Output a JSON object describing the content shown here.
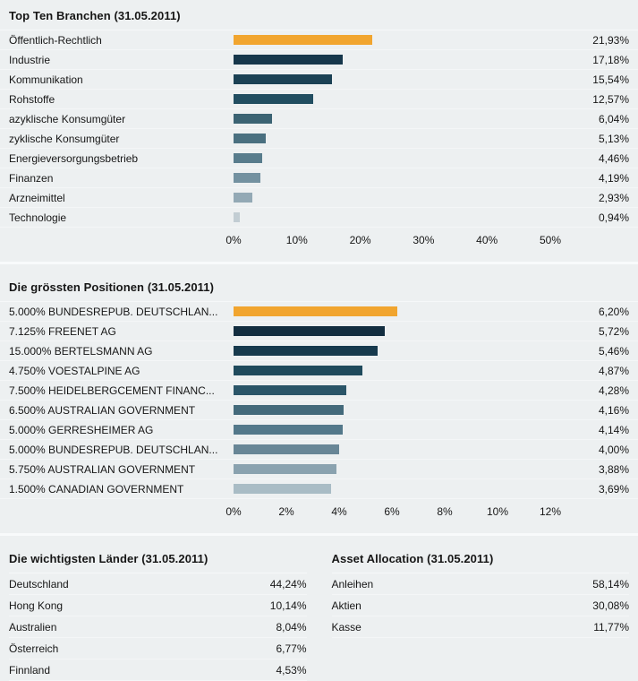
{
  "page": {
    "background": "#edf0f1",
    "text_color": "#161616",
    "separator_color": "#f8fafb",
    "accent_color": "#f1a52f"
  },
  "chart_data": [
    {
      "type": "bar",
      "orientation": "horizontal",
      "title": "Top Ten Branchen (31.05.2011)",
      "categories": [
        "Öffentlich-Rechtlich",
        "Industrie",
        "Kommunikation",
        "Rohstoffe",
        "azyklische Konsumgüter",
        "zyklische Konsumgüter",
        "Energieversorgungsbetrieb",
        "Finanzen",
        "Arzneimittel",
        "Technologie"
      ],
      "values": [
        21.93,
        17.18,
        15.54,
        12.57,
        6.04,
        5.13,
        4.46,
        4.19,
        2.93,
        0.94
      ],
      "value_labels": [
        "21,93%",
        "17,18%",
        "15,54%",
        "12,57%",
        "6,04%",
        "5,13%",
        "4,46%",
        "4,19%",
        "2,93%",
        "0,94%"
      ],
      "bar_colors": [
        "#f1a52f",
        "#16374b",
        "#1b4154",
        "#224e61",
        "#3b6373",
        "#4a7080",
        "#587c8c",
        "#7391a0",
        "#93a9b5",
        "#c2cdd3"
      ],
      "axis": {
        "ticks": [
          "0%",
          "10%",
          "20%",
          "30%",
          "40%",
          "50%"
        ],
        "max": 50
      },
      "xlabel": "",
      "ylabel": "",
      "grid": false,
      "legend": false
    },
    {
      "type": "bar",
      "orientation": "horizontal",
      "title": "Die grössten Positionen (31.05.2011)",
      "categories": [
        "5.000% BUNDESREPUB. DEUTSCHLAN...",
        "7.125% FREENET AG",
        "15.000% BERTELSMANN AG",
        "4.750% VOESTALPINE AG",
        "7.500% HEIDELBERGCEMENT FINANC...",
        "6.500% AUSTRALIAN GOVERNMENT",
        "5.000% GERRESHEIMER AG",
        "5.000% BUNDESREPUB. DEUTSCHLAN...",
        "5.750% AUSTRALIAN GOVERNMENT",
        "1.500% CANADIAN GOVERNMENT"
      ],
      "values": [
        6.2,
        5.72,
        5.46,
        4.87,
        4.28,
        4.16,
        4.14,
        4.0,
        3.88,
        3.69
      ],
      "value_labels": [
        "6,20%",
        "5,72%",
        "5,46%",
        "4,87%",
        "4,28%",
        "4,16%",
        "4,14%",
        "4,00%",
        "3,88%",
        "3,69%"
      ],
      "bar_colors": [
        "#f1a52f",
        "#132e40",
        "#173a4d",
        "#1f4a5c",
        "#2a5568",
        "#446a7b",
        "#53788a",
        "#688696",
        "#8aa2af",
        "#a9bcc5"
      ],
      "axis": {
        "ticks": [
          "0%",
          "2%",
          "4%",
          "6%",
          "8%",
          "10%",
          "12%"
        ],
        "max": 12
      },
      "xlabel": "",
      "ylabel": "",
      "grid": false,
      "legend": false
    }
  ],
  "tables": [
    {
      "title": "Die wichtigsten Länder (31.05.2011)",
      "rows": [
        {
          "label": "Deutschland",
          "value": "44,24%"
        },
        {
          "label": "Hong Kong",
          "value": "10,14%"
        },
        {
          "label": "Australien",
          "value": "8,04%"
        },
        {
          "label": "Österreich",
          "value": "6,77%"
        },
        {
          "label": "Finnland",
          "value": "4,53%"
        }
      ]
    },
    {
      "title": "Asset Allocation (31.05.2011)",
      "rows": [
        {
          "label": "Anleihen",
          "value": "58,14%"
        },
        {
          "label": "Aktien",
          "value": "30,08%"
        },
        {
          "label": "Kasse",
          "value": "11,77%"
        }
      ]
    }
  ]
}
